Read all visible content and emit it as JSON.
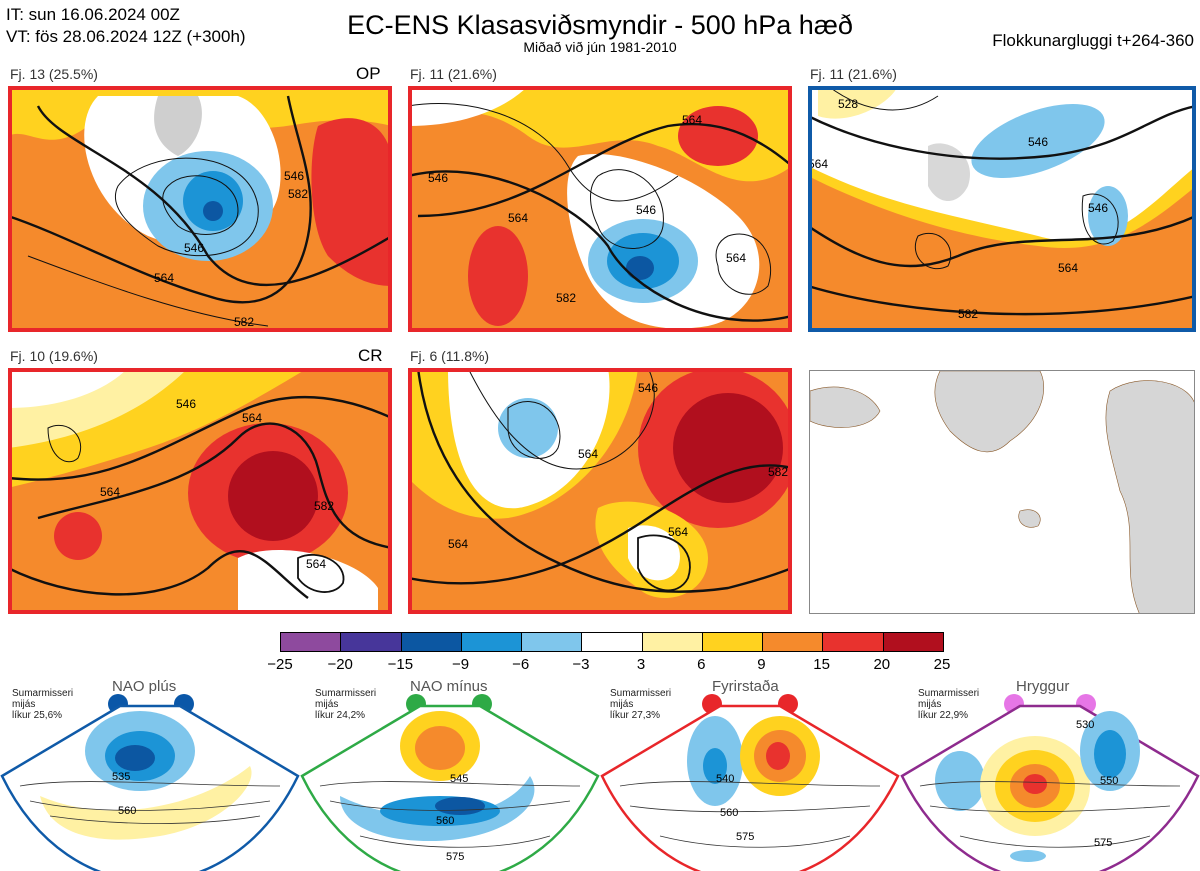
{
  "header": {
    "it_line": "IT: sun 16.06.2024 00Z",
    "vt_line": "VT: fös 28.06.2024 12Z  (+300h)",
    "title": "EC-ENS Klasasviðsmyndir - 500 hPa hæð",
    "subtitle": "Miðað við jún 1981-2010",
    "window": "Flokkunargluggi t+264-360"
  },
  "panels": [
    {
      "label": "Fj. 13 (25.5%)",
      "tag": "OP",
      "border": "#e8262a",
      "contours": [
        "546",
        "564",
        "546",
        "582",
        "582"
      ]
    },
    {
      "label": "Fj. 11 (21.6%)",
      "tag": "",
      "border": "#e8262a",
      "contours": [
        "564",
        "546",
        "546",
        "564",
        "564",
        "582"
      ]
    },
    {
      "label": "Fj. 11 (21.6%)",
      "tag": "",
      "border": "#0f5aa8",
      "contours": [
        "528",
        "546",
        "546",
        "564",
        "564",
        "582"
      ]
    },
    {
      "label": "Fj. 10 (19.6%)",
      "tag": "CR",
      "border": "#e8262a",
      "contours": [
        "546",
        "564",
        "564",
        "582",
        "564"
      ]
    },
    {
      "label": "Fj. 6 (11.8%)",
      "tag": "",
      "border": "#e8262a",
      "contours": [
        "546",
        "564",
        "564",
        "582",
        "564"
      ]
    }
  ],
  "colorbar": {
    "ticks": [
      "−25",
      "−20",
      "−15",
      "−9",
      "−6",
      "−3",
      "3",
      "6",
      "9",
      "15",
      "20",
      "25"
    ],
    "colors": [
      "#8e4a9e",
      "#47369a",
      "#0c57a2",
      "#1c94d6",
      "#7fc6ec",
      "#ffffff",
      "#fff1a3",
      "#ffd21f",
      "#f58a2c",
      "#e8322e",
      "#b10f1e"
    ]
  },
  "regimes": [
    {
      "name": "NAO plús",
      "season": "Sumarmisseri",
      "month": "mijás",
      "prob": "líkur 25,6%",
      "color": "#0f5aa8",
      "dot": "#0a57a8",
      "contours": [
        "535",
        "560"
      ]
    },
    {
      "name": "NAO mínus",
      "season": "Sumarmisseri",
      "month": "mijás",
      "prob": "líkur 24,2%",
      "color": "#2eaa46",
      "dot": "#2eaa46",
      "contours": [
        "545",
        "560",
        "575"
      ]
    },
    {
      "name": "Fyrirstaða",
      "season": "Sumarmisseri",
      "month": "mijás",
      "prob": "líkur 27,3%",
      "color": "#e8262a",
      "dot": "#e8262a",
      "contours": [
        "540",
        "560",
        "575"
      ]
    },
    {
      "name": "Hryggur",
      "season": "Sumarmisseri",
      "month": "mijás",
      "prob": "líkur 22,9%",
      "color": "#8e2b8e",
      "dot": "#e676e6",
      "contours": [
        "530",
        "550",
        "575"
      ]
    }
  ]
}
